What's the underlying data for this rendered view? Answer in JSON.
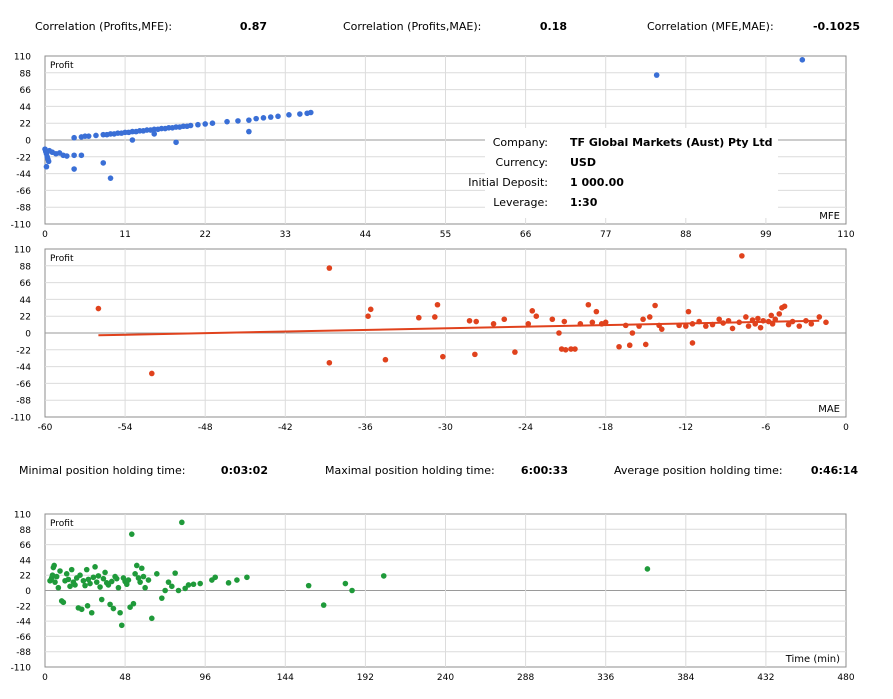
{
  "correlations": [
    {
      "label": "Correlation (Profits,MFE):",
      "value": "0.87"
    },
    {
      "label": "Correlation (Profits,MAE):",
      "value": "0.18"
    },
    {
      "label": "Correlation (MFE,MAE):",
      "value": "-0.1025"
    }
  ],
  "holding_times": [
    {
      "label": "Minimal position holding time:",
      "value": "0:03:02"
    },
    {
      "label": "Maximal position holding time:",
      "value": "6:00:33"
    },
    {
      "label": "Average position holding time:",
      "value": "0:46:14"
    }
  ],
  "account": {
    "company_label": "Company:",
    "company": "TF Global Markets (Aust) Pty Ltd",
    "currency_label": "Currency:",
    "currency": "USD",
    "deposit_label": "Initial Deposit:",
    "deposit": "1 000.00",
    "leverage_label": "Leverage:",
    "leverage": "1:30"
  },
  "colors": {
    "mfe": "#3a6fd6",
    "mae": "#e0421d",
    "time": "#1f9a3a",
    "grid": "#dcdcdc",
    "axis": "#8c8c8c"
  },
  "chart_data": [
    {
      "type": "scatter",
      "series_label": "Profit",
      "xlabel": "MFE",
      "ylabel": "Profit",
      "xlim": [
        0,
        110
      ],
      "ylim": [
        -110,
        110
      ],
      "x_ticks": [
        "0",
        "11",
        "22",
        "33",
        "44",
        "55",
        "66",
        "77",
        "88",
        "99",
        "110"
      ],
      "y_ticks": [
        "110",
        "88",
        "66",
        "44",
        "22",
        "0",
        "-22",
        "-44",
        "-66",
        "-88",
        "-110"
      ],
      "grid": true,
      "points": [
        [
          0,
          -12
        ],
        [
          0.1,
          -15
        ],
        [
          0.2,
          -18
        ],
        [
          0.3,
          -22
        ],
        [
          0.4,
          -25
        ],
        [
          0.5,
          -28
        ],
        [
          0.2,
          -35
        ],
        [
          0.6,
          -14
        ],
        [
          1,
          -16
        ],
        [
          1.5,
          -18
        ],
        [
          2,
          -17
        ],
        [
          2.5,
          -20
        ],
        [
          3,
          -21
        ],
        [
          4,
          -20
        ],
        [
          5,
          -20
        ],
        [
          4,
          -38
        ],
        [
          4,
          3
        ],
        [
          5,
          4
        ],
        [
          5.5,
          5
        ],
        [
          6,
          5
        ],
        [
          7,
          6
        ],
        [
          8,
          7
        ],
        [
          8.5,
          7
        ],
        [
          9,
          8
        ],
        [
          9.5,
          8
        ],
        [
          10,
          9
        ],
        [
          10.5,
          9
        ],
        [
          11,
          10
        ],
        [
          11.5,
          10
        ],
        [
          12,
          11
        ],
        [
          12.5,
          11
        ],
        [
          13,
          12
        ],
        [
          13.5,
          12
        ],
        [
          14,
          13
        ],
        [
          14.5,
          13
        ],
        [
          15,
          14
        ],
        [
          15.5,
          14
        ],
        [
          16,
          15
        ],
        [
          16.5,
          15
        ],
        [
          17,
          16
        ],
        [
          17.5,
          16
        ],
        [
          18,
          17
        ],
        [
          18.5,
          17
        ],
        [
          19,
          18
        ],
        [
          19.5,
          18
        ],
        [
          20,
          19
        ],
        [
          21,
          20
        ],
        [
          22,
          21
        ],
        [
          23,
          22
        ],
        [
          25,
          24
        ],
        [
          26.5,
          25
        ],
        [
          28,
          26
        ],
        [
          29,
          28
        ],
        [
          30,
          29
        ],
        [
          31,
          30
        ],
        [
          32,
          31
        ],
        [
          33.5,
          33
        ],
        [
          35,
          34
        ],
        [
          36,
          35
        ],
        [
          36.5,
          36
        ],
        [
          8,
          -30
        ],
        [
          9,
          -50
        ],
        [
          12,
          0
        ],
        [
          15,
          8
        ],
        [
          18,
          -3
        ],
        [
          28,
          11
        ],
        [
          84,
          85
        ],
        [
          104,
          105
        ]
      ]
    },
    {
      "type": "scatter",
      "series_label": "Profit",
      "xlabel": "MAE",
      "ylabel": "Profit",
      "xlim": [
        -60,
        0
      ],
      "ylim": [
        -110,
        110
      ],
      "x_ticks": [
        "-60",
        "-54",
        "-48",
        "-42",
        "-36",
        "-30",
        "-24",
        "-18",
        "-12",
        "-6",
        "0"
      ],
      "y_ticks": [
        "110",
        "88",
        "66",
        "44",
        "22",
        "0",
        "-22",
        "-44",
        "-66",
        "-88",
        "-110"
      ],
      "grid": true,
      "trendline": [
        [
          -56,
          -3
        ],
        [
          -2,
          16
        ]
      ],
      "points": [
        [
          -56,
          32
        ],
        [
          -52,
          -53
        ],
        [
          -38.7,
          85
        ],
        [
          -38.7,
          -39
        ],
        [
          -35.8,
          22
        ],
        [
          -35.6,
          31
        ],
        [
          -34.5,
          -35
        ],
        [
          -32,
          20
        ],
        [
          -30.8,
          21
        ],
        [
          -30.6,
          37
        ],
        [
          -30.2,
          -31
        ],
        [
          -28.2,
          16
        ],
        [
          -27.8,
          -28
        ],
        [
          -27.7,
          15
        ],
        [
          -26.4,
          12
        ],
        [
          -25.6,
          18
        ],
        [
          -24.8,
          -25
        ],
        [
          -23.8,
          12
        ],
        [
          -23.5,
          29
        ],
        [
          -23.2,
          22
        ],
        [
          -22,
          18
        ],
        [
          -21.5,
          0
        ],
        [
          -21.3,
          -21
        ],
        [
          -21.1,
          15
        ],
        [
          -21,
          -22
        ],
        [
          -20.6,
          -21
        ],
        [
          -20.3,
          -21
        ],
        [
          -19.9,
          12
        ],
        [
          -19.3,
          37
        ],
        [
          -19,
          14
        ],
        [
          -18.7,
          28
        ],
        [
          -18.3,
          12
        ],
        [
          -18,
          14
        ],
        [
          -17,
          -18
        ],
        [
          -16.5,
          10
        ],
        [
          -16.2,
          -16
        ],
        [
          -16,
          0
        ],
        [
          -15.5,
          9
        ],
        [
          -15.2,
          18
        ],
        [
          -15,
          -15
        ],
        [
          -14.7,
          21
        ],
        [
          -14.3,
          36
        ],
        [
          -14,
          10
        ],
        [
          -13.8,
          5
        ],
        [
          -12.5,
          10
        ],
        [
          -12,
          9
        ],
        [
          -11.8,
          28
        ],
        [
          -11.5,
          12
        ],
        [
          -11.5,
          -13
        ],
        [
          -11,
          15
        ],
        [
          -10.5,
          9
        ],
        [
          -10,
          11
        ],
        [
          -9.5,
          18
        ],
        [
          -9.2,
          13
        ],
        [
          -8.8,
          16
        ],
        [
          -8.5,
          6
        ],
        [
          -8,
          14
        ],
        [
          -7.8,
          101
        ],
        [
          -7.5,
          21
        ],
        [
          -7.3,
          9
        ],
        [
          -7,
          17
        ],
        [
          -6.8,
          12
        ],
        [
          -6.6,
          19
        ],
        [
          -6.4,
          7
        ],
        [
          -6.2,
          16
        ],
        [
          -5.8,
          15
        ],
        [
          -5.6,
          23
        ],
        [
          -5.5,
          12
        ],
        [
          -5.3,
          18
        ],
        [
          -5,
          25
        ],
        [
          -4.8,
          33
        ],
        [
          -4.6,
          35
        ],
        [
          -4.3,
          11
        ],
        [
          -4,
          15
        ],
        [
          -3.5,
          9
        ],
        [
          -3,
          16
        ],
        [
          -2.6,
          12
        ],
        [
          -2,
          21
        ],
        [
          -1.5,
          14
        ]
      ]
    },
    {
      "type": "scatter",
      "series_label": "Profit",
      "xlabel": "Time (min)",
      "ylabel": "Profit",
      "xlim": [
        0,
        480
      ],
      "ylim": [
        -110,
        110
      ],
      "x_ticks": [
        "0",
        "48",
        "96",
        "144",
        "192",
        "240",
        "288",
        "336",
        "384",
        "432",
        "480"
      ],
      "y_ticks": [
        "110",
        "88",
        "66",
        "44",
        "22",
        "0",
        "-22",
        "-44",
        "-66",
        "-88",
        "-110"
      ],
      "grid": true,
      "points": [
        [
          3,
          14
        ],
        [
          4,
          18
        ],
        [
          4.5,
          22
        ],
        [
          5,
          33
        ],
        [
          5.5,
          36
        ],
        [
          6,
          12
        ],
        [
          7,
          20
        ],
        [
          8,
          4
        ],
        [
          9,
          28
        ],
        [
          10,
          -15
        ],
        [
          11,
          -17
        ],
        [
          12,
          14
        ],
        [
          13,
          24
        ],
        [
          14,
          16
        ],
        [
          15,
          6
        ],
        [
          16,
          30
        ],
        [
          17,
          12
        ],
        [
          18,
          8
        ],
        [
          19,
          18
        ],
        [
          20,
          -25
        ],
        [
          21,
          22
        ],
        [
          22,
          -27
        ],
        [
          23,
          14
        ],
        [
          24,
          7
        ],
        [
          25,
          30
        ],
        [
          25.5,
          -22
        ],
        [
          26,
          16
        ],
        [
          27,
          10
        ],
        [
          28,
          -32
        ],
        [
          29,
          19
        ],
        [
          30,
          34
        ],
        [
          31,
          12
        ],
        [
          32,
          21
        ],
        [
          33,
          5
        ],
        [
          34,
          -13
        ],
        [
          35,
          17
        ],
        [
          36,
          26
        ],
        [
          37,
          11
        ],
        [
          38,
          8
        ],
        [
          39,
          -20
        ],
        [
          40,
          13
        ],
        [
          41,
          -26
        ],
        [
          42,
          20
        ],
        [
          43,
          17
        ],
        [
          44,
          4
        ],
        [
          45,
          -32
        ],
        [
          46,
          -50
        ],
        [
          47,
          18
        ],
        [
          48,
          13
        ],
        [
          49,
          9
        ],
        [
          50,
          15
        ],
        [
          51,
          -24
        ],
        [
          52,
          81
        ],
        [
          53,
          -19
        ],
        [
          54,
          24
        ],
        [
          55,
          36
        ],
        [
          56,
          18
        ],
        [
          57,
          12
        ],
        [
          58,
          32
        ],
        [
          59,
          20
        ],
        [
          60,
          4
        ],
        [
          62,
          15
        ],
        [
          64,
          -40
        ],
        [
          67,
          24
        ],
        [
          70,
          -11
        ],
        [
          72,
          0
        ],
        [
          74,
          12
        ],
        [
          76,
          6
        ],
        [
          78,
          25
        ],
        [
          80,
          0
        ],
        [
          82,
          98
        ],
        [
          84,
          3
        ],
        [
          86,
          8
        ],
        [
          89,
          9
        ],
        [
          93,
          10
        ],
        [
          100,
          15
        ],
        [
          102,
          19
        ],
        [
          110,
          11
        ],
        [
          115,
          15
        ],
        [
          121,
          19
        ],
        [
          158,
          7
        ],
        [
          167,
          -21
        ],
        [
          180,
          10
        ],
        [
          184,
          0
        ],
        [
          203,
          21
        ],
        [
          361,
          31
        ]
      ]
    }
  ]
}
